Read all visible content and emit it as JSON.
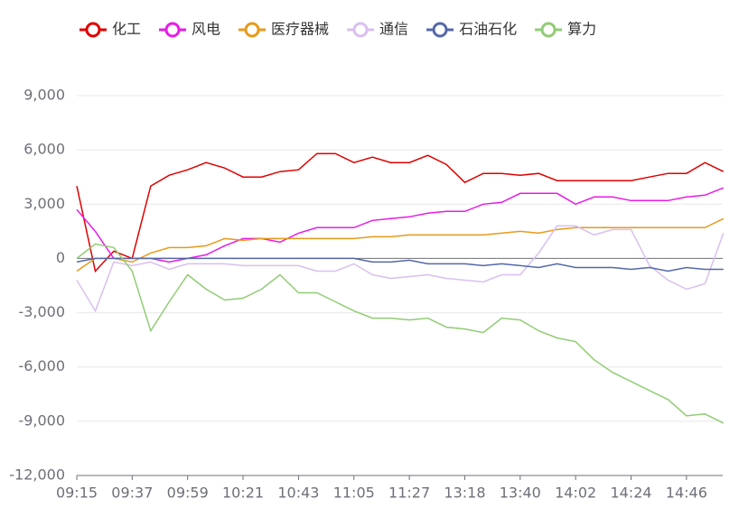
{
  "chart_data": {
    "type": "line",
    "categories": [
      "09:15",
      null,
      null,
      "09:37",
      null,
      null,
      "09:59",
      null,
      null,
      "10:21",
      null,
      null,
      "10:43",
      null,
      null,
      "11:05",
      null,
      null,
      "11:27",
      null,
      null,
      "13:18",
      null,
      null,
      "13:40",
      null,
      null,
      "14:02",
      null,
      null,
      "14:24",
      null,
      null,
      "14:46",
      null,
      null
    ],
    "ylim": [
      -12000,
      9000
    ],
    "yticks": [
      {
        "value": -12000,
        "label": "-12,000"
      },
      {
        "value": -9000,
        "label": "-9,000"
      },
      {
        "value": -6000,
        "label": "-6,000"
      },
      {
        "value": -3000,
        "label": "-3,000"
      },
      0,
      {
        "value": 3000,
        "label": "3,000"
      },
      {
        "value": 6000,
        "label": "6,000"
      },
      {
        "value": 9000,
        "label": "9,000"
      }
    ],
    "grid": true,
    "series": [
      {
        "name": "化工",
        "color": "#e00000",
        "values": [
          4000,
          -700,
          400,
          0,
          4000,
          4600,
          4900,
          5300,
          5000,
          4500,
          4500,
          4800,
          4900,
          5800,
          5800,
          5300,
          5600,
          5300,
          5300,
          5700,
          5200,
          4200,
          4700,
          4700,
          4600,
          4700,
          4300,
          4300,
          4300,
          4300,
          4300,
          4500,
          4700,
          4700,
          5300,
          4800
        ]
      },
      {
        "name": "风电",
        "color": "#e81be8",
        "values": [
          2700,
          1500,
          0,
          0,
          0,
          -200,
          0,
          200,
          700,
          1100,
          1100,
          900,
          1400,
          1700,
          1700,
          1700,
          2100,
          2200,
          2300,
          2500,
          2600,
          2600,
          3000,
          3100,
          3600,
          3600,
          3600,
          3000,
          3400,
          3400,
          3200,
          3200,
          3200,
          3400,
          3500,
          3900
        ]
      },
      {
        "name": "医疗器械",
        "color": "#e89a1a",
        "values": [
          -700,
          0,
          0,
          -200,
          300,
          600,
          600,
          700,
          1100,
          1000,
          1100,
          1100,
          1100,
          1100,
          1100,
          1100,
          1200,
          1200,
          1300,
          1300,
          1300,
          1300,
          1300,
          1400,
          1500,
          1400,
          1600,
          1700,
          1700,
          1700,
          1700,
          1700,
          1700,
          1700,
          1700,
          2200
        ]
      },
      {
        "name": "通信",
        "color": "#d9bff0",
        "values": [
          -1200,
          -2900,
          -200,
          -400,
          -200,
          -600,
          -300,
          -300,
          -300,
          -400,
          -400,
          -400,
          -400,
          -700,
          -700,
          -300,
          -900,
          -1100,
          -1000,
          -900,
          -1100,
          -1200,
          -1300,
          -900,
          -900,
          300,
          1800,
          1800,
          1300,
          1600,
          1600,
          -400,
          -1200,
          -1700,
          -1400,
          1400
        ]
      },
      {
        "name": "石油石化",
        "color": "#5468a8",
        "values": [
          -200,
          0,
          0,
          0,
          0,
          0,
          0,
          0,
          0,
          0,
          0,
          0,
          0,
          0,
          0,
          0,
          -200,
          -200,
          -100,
          -300,
          -300,
          -300,
          -400,
          -300,
          -400,
          -500,
          -300,
          -500,
          -500,
          -500,
          -600,
          -500,
          -700,
          -500,
          -600,
          -600
        ]
      },
      {
        "name": "算力",
        "color": "#91cc75",
        "values": [
          0,
          800,
          600,
          -700,
          -4000,
          -2400,
          -900,
          -1700,
          -2300,
          -2200,
          -1700,
          -900,
          -1900,
          -1900,
          -2400,
          -2900,
          -3300,
          -3300,
          -3400,
          -3300,
          -3800,
          -3900,
          -4100,
          -3300,
          -3400,
          -4000,
          -4400,
          -4600,
          -5600,
          -6300,
          -6800,
          -7300,
          -7800,
          -8700,
          -8600,
          -9100
        ]
      }
    ]
  }
}
